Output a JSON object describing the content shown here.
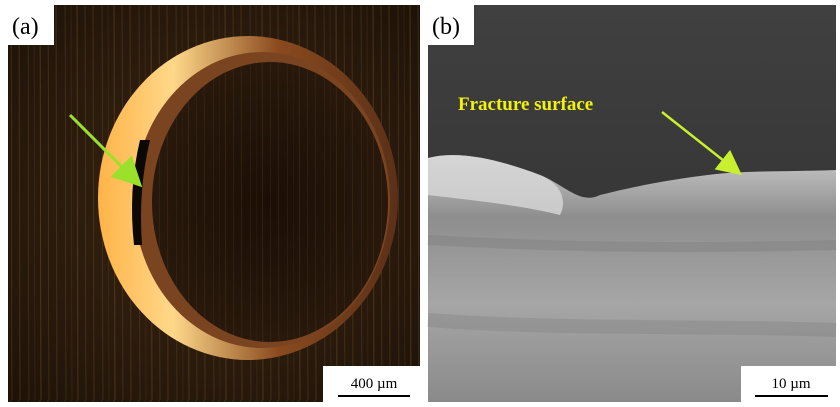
{
  "panels": [
    {
      "label": "(a)",
      "scale_bar": "400 µm"
    },
    {
      "label": "(b)",
      "scale_bar": "10 µm",
      "annotation": "Fracture surface"
    }
  ]
}
